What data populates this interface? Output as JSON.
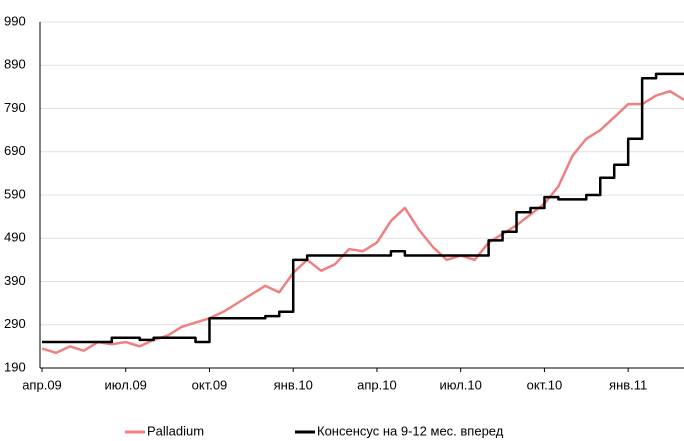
{
  "chart_data": {
    "type": "line",
    "categories": [
      "апр.09",
      null,
      null,
      null,
      null,
      null,
      "июл.09",
      null,
      null,
      null,
      null,
      null,
      "окт.09",
      null,
      null,
      null,
      null,
      null,
      "янв.10",
      null,
      null,
      null,
      null,
      null,
      "апр.10",
      null,
      null,
      null,
      null,
      null,
      "июл.10",
      null,
      null,
      null,
      null,
      null,
      "окт.10",
      null,
      null,
      null,
      null,
      null,
      "янв.11",
      null,
      null,
      null,
      null
    ],
    "series": [
      {
        "name": "Palladium",
        "color": "#f08080",
        "values": [
          235,
          225,
          240,
          230,
          250,
          245,
          250,
          240,
          255,
          265,
          285,
          295,
          305,
          320,
          340,
          360,
          380,
          365,
          410,
          440,
          415,
          430,
          465,
          460,
          480,
          530,
          560,
          510,
          470,
          440,
          450,
          440,
          480,
          500,
          520,
          545,
          570,
          610,
          680,
          720,
          740,
          770,
          800,
          800,
          820,
          830,
          810
        ]
      },
      {
        "name": "Консенсус на 9-12 мес. вперед",
        "color": "#000000",
        "step": true,
        "values": [
          250,
          250,
          250,
          250,
          250,
          260,
          260,
          255,
          260,
          260,
          260,
          250,
          305,
          305,
          305,
          305,
          310,
          320,
          440,
          450,
          450,
          450,
          450,
          450,
          450,
          460,
          450,
          450,
          450,
          450,
          450,
          450,
          485,
          505,
          550,
          560,
          585,
          580,
          580,
          590,
          630,
          660,
          720,
          860,
          870,
          870,
          870
        ]
      }
    ],
    "ylim": [
      190,
      990
    ],
    "yticks": [
      190,
      290,
      390,
      490,
      590,
      690,
      790,
      890,
      990
    ],
    "grid": true,
    "legend": "bottom"
  }
}
